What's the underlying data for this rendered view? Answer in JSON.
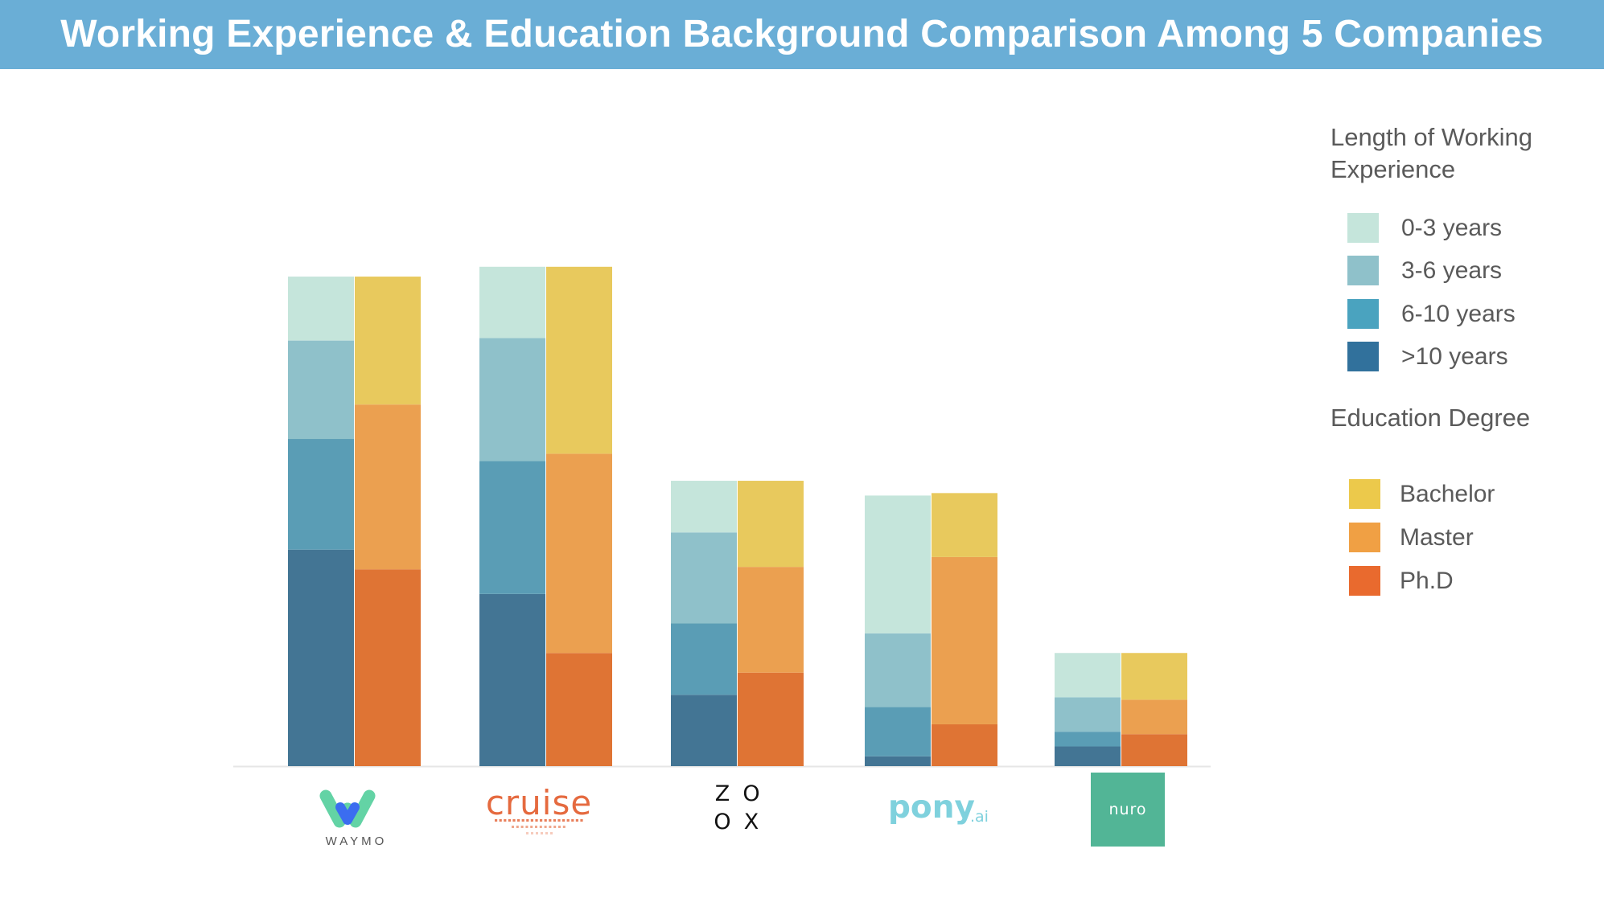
{
  "header": {
    "title": "Working Experience & Education Background Comparison Among 5 Companies"
  },
  "colors": {
    "title_bar": "#6aaed6",
    "exp_0_3": "#c5e5db",
    "exp_3_6": "#8fc1ca",
    "exp_6_10": "#5a9db5",
    "exp_gt_10": "#437594",
    "edu_bachelor": "#e8c95d",
    "edu_master": "#eba050",
    "edu_phd": "#df7434"
  },
  "legend": {
    "experience_title": "Length of Working Experience",
    "experience_items": [
      "0-3 years",
      "3-6 years",
      "6-10 years",
      ">10 years"
    ],
    "education_title": "Education Degree",
    "education_items": [
      "Bachelor",
      "Master",
      "Ph.D"
    ]
  },
  "logos": [
    {
      "company": "waymo",
      "wordmark": "WAYMO"
    },
    {
      "company": "cruise",
      "wordmark": "cruise"
    },
    {
      "company": "zoox",
      "wordmark": "ZOOX"
    },
    {
      "company": "pony.ai",
      "wordmark": "pony",
      "suffix": ".ai"
    },
    {
      "company": "nuro",
      "wordmark": "nuro"
    }
  ],
  "chart_data": {
    "type": "bar",
    "stacked": true,
    "grouped": true,
    "categories": [
      "Waymo",
      "Cruise",
      "Zoox",
      "Pony.ai",
      "Nuro"
    ],
    "ylim": [
      0,
      100
    ],
    "groups": [
      {
        "name": "Length of Working Experience",
        "series": [
          {
            "name": ">10 years",
            "values": [
              44,
              35,
              14.5,
              2,
              4
            ]
          },
          {
            "name": "6-10 years",
            "values": [
              22.5,
              27,
              14.5,
              10,
              3
            ]
          },
          {
            "name": "3-6 years",
            "values": [
              20,
              25,
              18.5,
              15,
              7
            ]
          },
          {
            "name": "0-3 years",
            "values": [
              13,
              14.5,
              10.5,
              28,
              9
            ]
          }
        ]
      },
      {
        "name": "Education Degree",
        "series": [
          {
            "name": "Ph.D",
            "values": [
              40,
              23,
              19,
              8.5,
              6.5
            ]
          },
          {
            "name": "Master",
            "values": [
              33.5,
              40.5,
              21.5,
              34,
              7
            ]
          },
          {
            "name": "Bachelor",
            "values": [
              26,
              38,
              17.5,
              13,
              9.5
            ]
          }
        ]
      }
    ]
  }
}
